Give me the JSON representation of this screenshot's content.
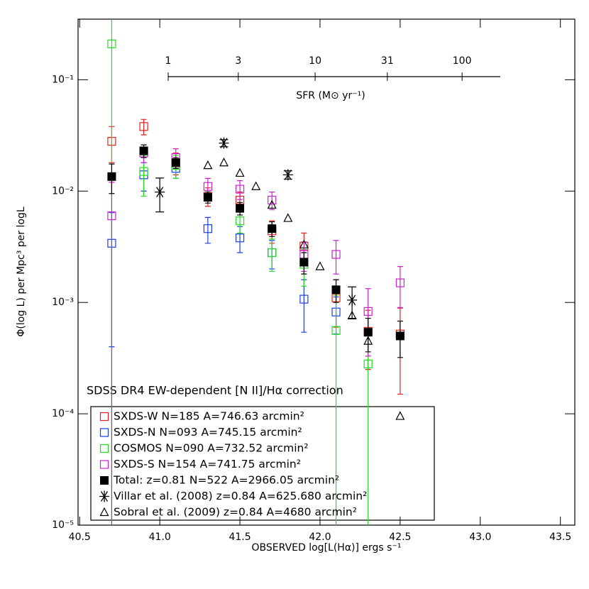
{
  "chart_data": {
    "type": "scatter",
    "xlabel": "OBSERVED log[L(Hα)] ergs s⁻¹",
    "ylabel": "Φ(log L) per Mpc³ per logL",
    "annotation": "SDSS DR4 EW-dependent [N II]/Hα correction",
    "log_y": true,
    "xlim": [
      40.49,
      43.59
    ],
    "ylim": [
      1e-05,
      0.35
    ],
    "xticks": [
      40.5,
      {
        "value": 41,
        "label": "41.0"
      },
      41.5,
      {
        "value": 42,
        "label": "42.0"
      },
      42.5,
      {
        "value": 43,
        "label": "43.0"
      },
      43.5
    ],
    "yticks": [
      {
        "value": 1e-05,
        "label": "10⁻⁵"
      },
      {
        "value": 0.0001,
        "label": "10⁻⁴"
      },
      {
        "value": 0.001,
        "label": "10⁻³"
      },
      {
        "value": 0.01,
        "label": "10⁻²"
      },
      {
        "value": 0.1,
        "label": "10⁻¹"
      }
    ],
    "sfr_axis": {
      "label": "SFR (M⊙ yr⁻¹)",
      "lim": [
        1,
        182
      ],
      "ticks": [
        1,
        3,
        10,
        31,
        100
      ]
    },
    "series": [
      {
        "name": "SXDS-W N=185 A=746.63 arcmin²",
        "color": "#e8201a",
        "marker": "square-open",
        "x": [
          40.7,
          40.9,
          41.1,
          41.3,
          41.5,
          41.7,
          41.9,
          42.1,
          42.3,
          42.5
        ],
        "values": [
          0.028,
          0.038,
          0.018,
          0.009,
          0.0083,
          0.0044,
          0.0032,
          0.0011,
          0.00055,
          0.00052
        ],
        "errors": [
          0.01,
          0.006,
          0.004,
          0.0017,
          0.0015,
          0.001,
          0.001,
          0.0005,
          0.0003,
          0.00037
        ]
      },
      {
        "name": "SXDS-N N=093 A=745.15 arcmin²",
        "color": "#1a3ee8",
        "marker": "square-open",
        "x": [
          40.7,
          40.9,
          41.1,
          41.3,
          41.5,
          41.7,
          41.9,
          42.1
        ],
        "values": [
          0.0034,
          0.014,
          0.016,
          0.0046,
          0.0038,
          0.0028,
          0.00107,
          0.00082
        ],
        "errors": [
          0.003,
          0.004,
          0.003,
          0.0012,
          0.001,
          0.0008,
          0.00053,
          0.0003
        ]
      },
      {
        "name": "COSMOS N=090 A=732.52 arcmin²",
        "color": "#22dd22",
        "marker": "square-open",
        "x": [
          40.7,
          40.9,
          41.1,
          41.5,
          41.7,
          41.9,
          42.1,
          42.3
        ],
        "values": [
          0.21,
          0.015,
          0.017,
          0.0054,
          0.0028,
          0.0022,
          0.00056,
          0.00028
        ],
        "errors": [
          0.21,
          0.006,
          0.004,
          0.0012,
          0.0009,
          0.0008,
          0.0006,
          0.0003
        ]
      },
      {
        "name": "SXDS-S N=154 A=741.75 arcmin²",
        "color": "#cc22cc",
        "marker": "square-open",
        "x": [
          40.7,
          40.9,
          41.1,
          41.3,
          41.5,
          41.7,
          41.9,
          42.1,
          42.3,
          42.5
        ],
        "values": [
          0.006,
          0.022,
          0.02,
          0.011,
          0.0104,
          0.0083,
          0.0027,
          0.0027,
          0.00083,
          0.0015
        ],
        "errors": [
          0.006,
          0.004,
          0.004,
          0.002,
          0.002,
          0.0015,
          0.0008,
          0.0009,
          0.0005,
          0.0006
        ]
      },
      {
        "name": "Total: z=0.81   N=522 A=2966.05 arcmin²",
        "color": "#000000",
        "marker": "square-filled",
        "x": [
          40.7,
          40.9,
          41.1,
          41.3,
          41.5,
          41.7,
          41.9,
          42.1,
          42.3,
          42.5
        ],
        "values": [
          0.0135,
          0.023,
          0.018,
          0.0088,
          0.007,
          0.0046,
          0.0023,
          0.0013,
          0.00054,
          0.0005
        ],
        "errors": [
          0.004,
          0.003,
          0.002,
          0.001,
          0.0009,
          0.0007,
          0.0005,
          0.0003,
          0.00018,
          0.00018
        ]
      },
      {
        "name": "Villar et al. (2008) z=0.84 A=625.680 arcmin²",
        "color": "#000000",
        "marker": "asterisk",
        "x": [
          41.0,
          41.4,
          41.8,
          42.2
        ],
        "values": [
          0.0098,
          0.027,
          0.014,
          0.00105
        ],
        "errors": [
          0.0033,
          0.002,
          0.0012,
          0.00033
        ]
      },
      {
        "name": "Sobral et al. (2009) z=0.84 A=4680 arcmin²",
        "color": "#000000",
        "marker": "triangle",
        "x": [
          41.3,
          41.4,
          41.5,
          41.6,
          41.7,
          41.8,
          41.9,
          42.0,
          42.2,
          42.3,
          42.5
        ],
        "values": [
          0.017,
          0.018,
          0.0145,
          0.011,
          0.0075,
          0.0057,
          0.0033,
          0.0021,
          0.00076,
          0.00045,
          9.5e-05
        ]
      }
    ]
  }
}
